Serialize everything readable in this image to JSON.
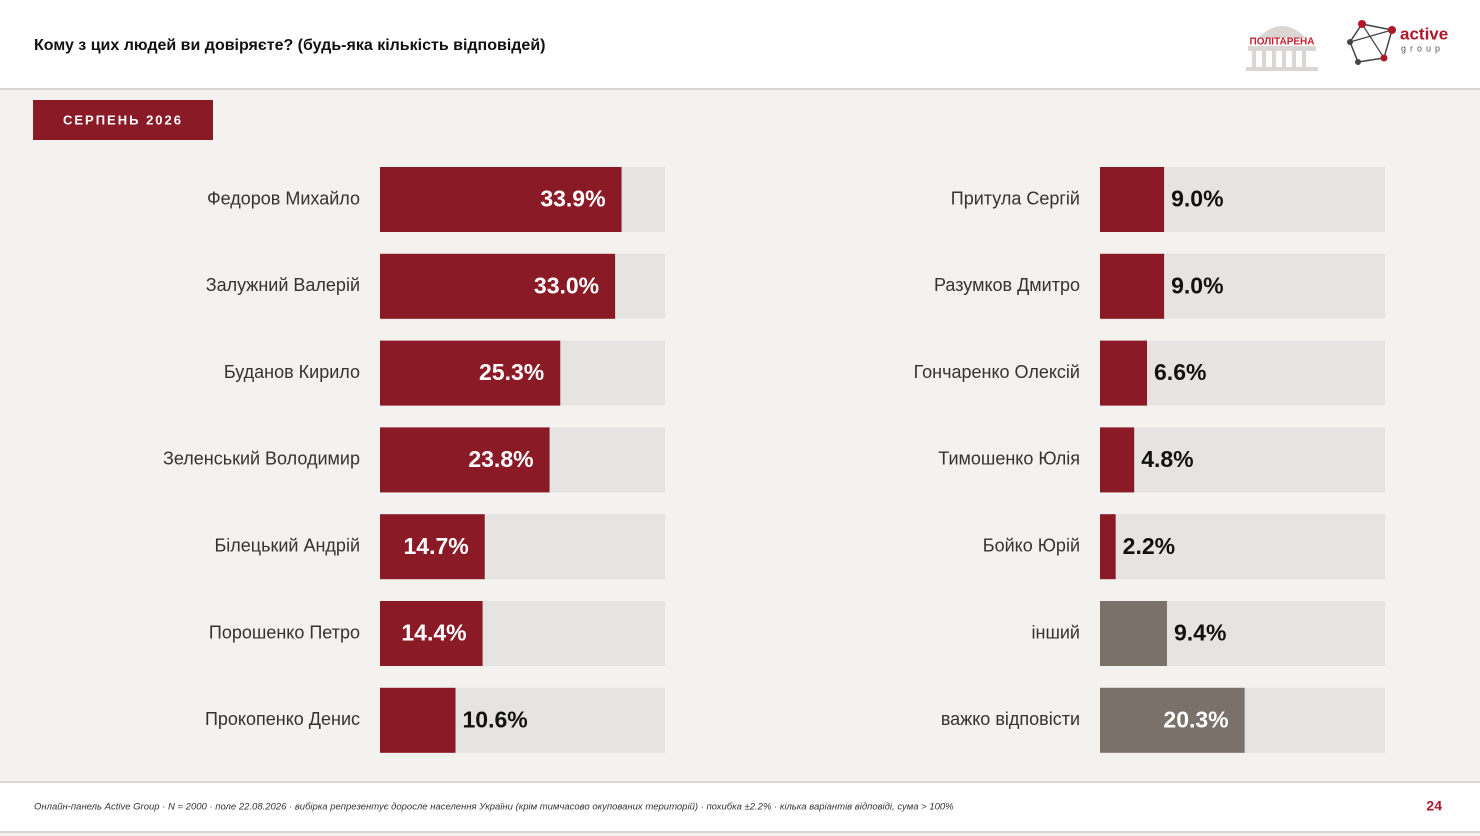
{
  "header": {
    "title": "Кому з цих людей ви довіряєте? (будь-яка кількість відповідей)",
    "logo1": "ПОЛІТАРЕНА",
    "logo2": "active",
    "logo2_sub": "group"
  },
  "badge": "СЕРПЕНЬ 2026",
  "footer": {
    "note": "Онлайн-панель Active Group · N = 2000 · поле 22.08.2026 · вибірка репрезентує доросле населення України (крім тимчасово окупованих територій) · похибка ±2.2% · кілька варіантів відповіді, сума > 100%",
    "page": "24"
  },
  "chart_data": [
    {
      "type": "bar",
      "orientation": "horizontal",
      "categories": [
        "Федоров Михайло",
        "Залужний Валерій",
        "Буданов Кирило",
        "Зеленський Володимир",
        "Білецький Андрій",
        "Порошенко Петро",
        "Прокопенко Денис"
      ],
      "values": [
        33.9,
        33.0,
        25.3,
        23.8,
        14.7,
        14.4,
        10.6
      ],
      "value_labels": [
        "33.9%",
        "33.0%",
        "25.3%",
        "23.8%",
        "14.7%",
        "14.4%",
        "10.6%"
      ],
      "colors": [
        "#8b1a27",
        "#8b1a27",
        "#8b1a27",
        "#8b1a27",
        "#8b1a27",
        "#8b1a27",
        "#8b1a27"
      ],
      "track_color": "#e6e4e2",
      "xlim": [
        0,
        40
      ]
    },
    {
      "type": "bar",
      "orientation": "horizontal",
      "categories": [
        "Притула Сергій",
        "Разумков Дмитро",
        "Гончаренко Олексій",
        "Тимошенко Юлія",
        "Бойко Юрій",
        "інший",
        "важко відповісти"
      ],
      "values": [
        9.0,
        9.0,
        6.6,
        4.8,
        2.2,
        9.4,
        20.3
      ],
      "value_labels": [
        "9.0%",
        "9.0%",
        "6.6%",
        "4.8%",
        "2.2%",
        "9.4%",
        "20.3%"
      ],
      "colors": [
        "#8b1a27",
        "#8b1a27",
        "#8b1a27",
        "#8b1a27",
        "#8b1a27",
        "#7a716b",
        "#7a716b"
      ],
      "track_color": "#e6e4e2",
      "xlim": [
        0,
        40
      ]
    }
  ]
}
